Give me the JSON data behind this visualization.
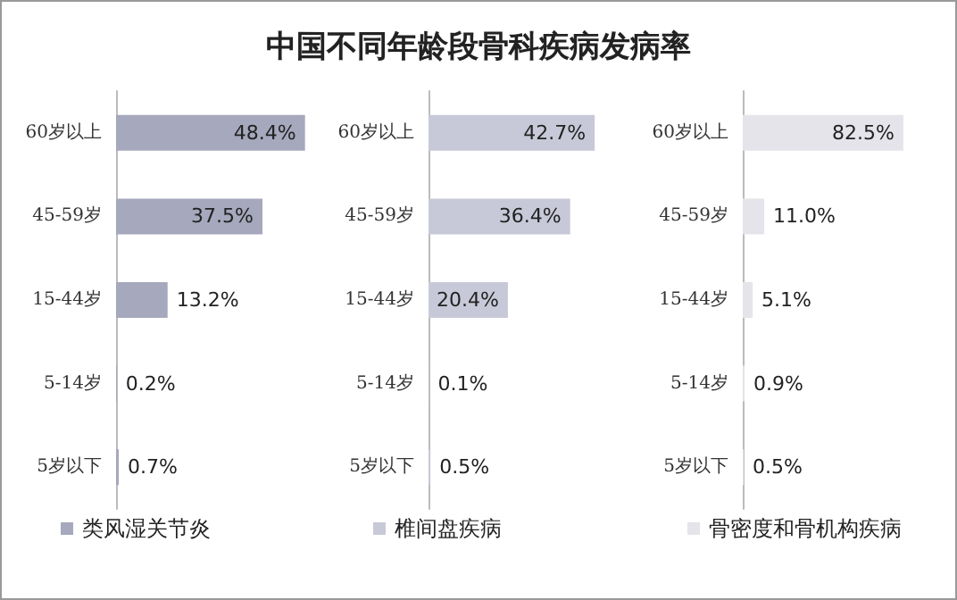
{
  "chart_data": [
    {
      "type": "bar",
      "orientation": "horizontal",
      "title": "中国不同年龄段骨科疾病发病率",
      "categories": [
        "60岁以上",
        "45-59岁",
        "15-44岁",
        "5-14岁",
        "5岁以下"
      ],
      "series": [
        {
          "name": "类风湿关节炎",
          "color": "#a6a8bd",
          "values": [
            48.4,
            37.5,
            13.2,
            0.2,
            0.7
          ],
          "value_labels": [
            "48.4%",
            "37.5%",
            "13.2%",
            "0.2%",
            "0.7%"
          ]
        }
      ],
      "legend": "bottom"
    },
    {
      "type": "bar",
      "orientation": "horizontal",
      "categories": [
        "60岁以上",
        "45-59岁",
        "15-44岁",
        "5-14岁",
        "5岁以下"
      ],
      "series": [
        {
          "name": "椎间盘疾病",
          "color": "#c8c9d8",
          "values": [
            42.7,
            36.4,
            20.4,
            0.1,
            0.5
          ],
          "value_labels": [
            "42.7%",
            "36.4%",
            "20.4%",
            "0.1%",
            "0.5%"
          ]
        }
      ],
      "legend": "bottom"
    },
    {
      "type": "bar",
      "orientation": "horizontal",
      "categories": [
        "60岁以上",
        "45-59岁",
        "15-44岁",
        "5-14岁",
        "5岁以下"
      ],
      "series": [
        {
          "name": "骨密度和骨机构疾病",
          "color": "#e4e4ea",
          "values": [
            82.5,
            11.0,
            5.1,
            0.9,
            0.5
          ],
          "value_labels": [
            "82.5%",
            "11.0%",
            "5.1%",
            "0.9%",
            "0.5%"
          ]
        }
      ],
      "legend": "bottom"
    }
  ]
}
